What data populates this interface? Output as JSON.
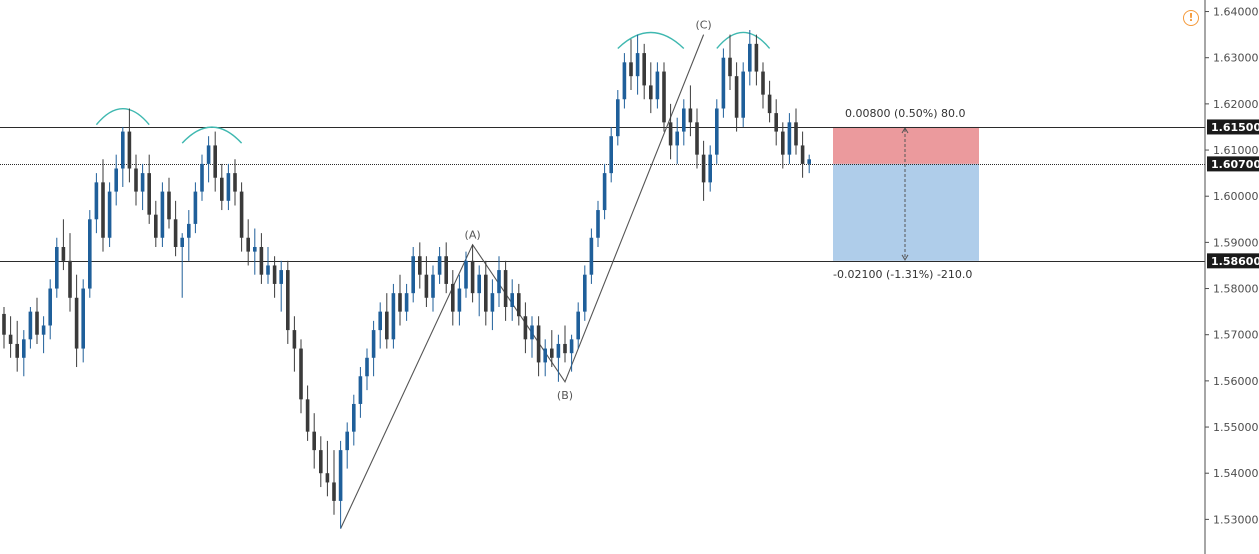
{
  "chart_data": {
    "type": "candlestick",
    "y_axis": {
      "range": [
        1.5225,
        1.6425
      ],
      "side": "right",
      "ticks": [
        "1.53000",
        "1.54000",
        "1.55000",
        "1.56000",
        "1.57000",
        "1.58000",
        "1.59000",
        "1.60000",
        "1.61000",
        "1.62000",
        "1.63000",
        "1.64000"
      ],
      "tick_values": [
        1.53,
        1.54,
        1.55,
        1.56,
        1.57,
        1.58,
        1.59,
        1.6,
        1.61,
        1.62,
        1.63,
        1.64
      ]
    },
    "colors": {
      "bull": "#1f5f9a",
      "bear": "#3a3a3a",
      "arc": "#3fb8b0",
      "profit_zone": "#e8888c",
      "stop_zone": "#a6c8e8",
      "price_label_bg": "#1a1a1a"
    },
    "price_levels": [
      {
        "value": 1.615,
        "label": "1.61500",
        "style": "solid"
      },
      {
        "value": 1.607,
        "label": "1.60700",
        "style": "dotted"
      },
      {
        "value": 1.586,
        "label": "1.58600",
        "style": "solid"
      }
    ],
    "wave_labels": [
      {
        "text": "(A)",
        "bar": 71,
        "price": 1.5895
      },
      {
        "text": "(B)",
        "bar": 85,
        "price": 1.5598
      },
      {
        "text": "(C)",
        "bar": 106,
        "price": 1.635
      }
    ],
    "wave_line": [
      [
        51,
        1.528
      ],
      [
        71,
        1.5895
      ],
      [
        85,
        1.5598
      ],
      [
        106,
        1.635
      ]
    ],
    "top_arcs": [
      {
        "from": 14,
        "to": 22,
        "price": 1.6155
      },
      {
        "from": 27,
        "to": 36,
        "price": 1.6115
      },
      {
        "from": 93,
        "to": 103,
        "price": 1.632
      },
      {
        "from": 108,
        "to": 116,
        "price": 1.632
      }
    ],
    "position": {
      "entry": 1.607,
      "target": 1.615,
      "stop": 1.586,
      "target_label": "0.00800 (0.50%) 80.0",
      "stop_label": "-0.02100 (-1.31%) -210.0"
    },
    "candles": [
      [
        1.5745,
        1.576,
        1.567,
        1.57
      ],
      [
        1.57,
        1.574,
        1.565,
        1.568
      ],
      [
        1.568,
        1.573,
        1.562,
        1.565
      ],
      [
        1.565,
        1.571,
        1.561,
        1.569
      ],
      [
        1.569,
        1.576,
        1.567,
        1.575
      ],
      [
        1.575,
        1.578,
        1.568,
        1.57
      ],
      [
        1.57,
        1.574,
        1.566,
        1.572
      ],
      [
        1.572,
        1.582,
        1.569,
        1.58
      ],
      [
        1.58,
        1.591,
        1.578,
        1.589
      ],
      [
        1.589,
        1.595,
        1.584,
        1.586
      ],
      [
        1.586,
        1.592,
        1.575,
        1.578
      ],
      [
        1.578,
        1.583,
        1.563,
        1.567
      ],
      [
        1.567,
        1.582,
        1.564,
        1.58
      ],
      [
        1.58,
        1.597,
        1.578,
        1.595
      ],
      [
        1.595,
        1.605,
        1.592,
        1.603
      ],
      [
        1.603,
        1.608,
        1.588,
        1.591
      ],
      [
        1.591,
        1.603,
        1.589,
        1.601
      ],
      [
        1.601,
        1.609,
        1.598,
        1.606
      ],
      [
        1.606,
        1.615,
        1.602,
        1.614
      ],
      [
        1.614,
        1.619,
        1.603,
        1.606
      ],
      [
        1.606,
        1.609,
        1.598,
        1.601
      ],
      [
        1.601,
        1.607,
        1.597,
        1.605
      ],
      [
        1.605,
        1.609,
        1.594,
        1.596
      ],
      [
        1.596,
        1.599,
        1.589,
        1.591
      ],
      [
        1.591,
        1.603,
        1.589,
        1.601
      ],
      [
        1.601,
        1.604,
        1.593,
        1.595
      ],
      [
        1.595,
        1.599,
        1.587,
        1.589
      ],
      [
        1.589,
        1.592,
        1.578,
        1.591
      ],
      [
        1.591,
        1.597,
        1.586,
        1.594
      ],
      [
        1.594,
        1.603,
        1.592,
        1.601
      ],
      [
        1.601,
        1.609,
        1.599,
        1.607
      ],
      [
        1.607,
        1.613,
        1.603,
        1.611
      ],
      [
        1.611,
        1.614,
        1.601,
        1.604
      ],
      [
        1.604,
        1.607,
        1.597,
        1.599
      ],
      [
        1.599,
        1.607,
        1.597,
        1.605
      ],
      [
        1.605,
        1.608,
        1.598,
        1.601
      ],
      [
        1.601,
        1.603,
        1.588,
        1.591
      ],
      [
        1.591,
        1.595,
        1.585,
        1.588
      ],
      [
        1.588,
        1.593,
        1.583,
        1.589
      ],
      [
        1.589,
        1.592,
        1.581,
        1.583
      ],
      [
        1.583,
        1.589,
        1.581,
        1.585
      ],
      [
        1.585,
        1.587,
        1.578,
        1.581
      ],
      [
        1.581,
        1.586,
        1.575,
        1.584
      ],
      [
        1.584,
        1.586,
        1.568,
        1.571
      ],
      [
        1.571,
        1.574,
        1.562,
        1.567
      ],
      [
        1.567,
        1.569,
        1.553,
        1.556
      ],
      [
        1.556,
        1.559,
        1.547,
        1.549
      ],
      [
        1.549,
        1.553,
        1.541,
        1.545
      ],
      [
        1.545,
        1.548,
        1.537,
        1.54
      ],
      [
        1.54,
        1.547,
        1.535,
        1.538
      ],
      [
        1.538,
        1.545,
        1.531,
        1.534
      ],
      [
        1.534,
        1.547,
        1.528,
        1.545
      ],
      [
        1.545,
        1.551,
        1.541,
        1.549
      ],
      [
        1.549,
        1.557,
        1.546,
        1.555
      ],
      [
        1.555,
        1.563,
        1.552,
        1.561
      ],
      [
        1.561,
        1.567,
        1.558,
        1.565
      ],
      [
        1.565,
        1.573,
        1.561,
        1.571
      ],
      [
        1.571,
        1.577,
        1.567,
        1.575
      ],
      [
        1.575,
        1.579,
        1.567,
        1.569
      ],
      [
        1.569,
        1.581,
        1.567,
        1.579
      ],
      [
        1.579,
        1.583,
        1.572,
        1.575
      ],
      [
        1.575,
        1.581,
        1.573,
        1.579
      ],
      [
        1.579,
        1.589,
        1.577,
        1.587
      ],
      [
        1.587,
        1.59,
        1.58,
        1.583
      ],
      [
        1.583,
        1.587,
        1.576,
        1.578
      ],
      [
        1.578,
        1.585,
        1.575,
        1.583
      ],
      [
        1.583,
        1.589,
        1.581,
        1.587
      ],
      [
        1.587,
        1.59,
        1.579,
        1.581
      ],
      [
        1.581,
        1.584,
        1.572,
        1.575
      ],
      [
        1.575,
        1.583,
        1.572,
        1.58
      ],
      [
        1.58,
        1.588,
        1.578,
        1.586
      ],
      [
        1.586,
        1.5895,
        1.577,
        1.579
      ],
      [
        1.579,
        1.585,
        1.574,
        1.583
      ],
      [
        1.583,
        1.586,
        1.572,
        1.575
      ],
      [
        1.575,
        1.582,
        1.571,
        1.579
      ],
      [
        1.579,
        1.587,
        1.576,
        1.584
      ],
      [
        1.584,
        1.586,
        1.573,
        1.576
      ],
      [
        1.576,
        1.582,
        1.573,
        1.579
      ],
      [
        1.579,
        1.581,
        1.572,
        1.574
      ],
      [
        1.574,
        1.577,
        1.566,
        1.569
      ],
      [
        1.569,
        1.574,
        1.565,
        1.572
      ],
      [
        1.572,
        1.574,
        1.561,
        1.564
      ],
      [
        1.564,
        1.569,
        1.561,
        1.567
      ],
      [
        1.567,
        1.571,
        1.563,
        1.565
      ],
      [
        1.565,
        1.57,
        1.5598,
        1.568
      ],
      [
        1.568,
        1.572,
        1.564,
        1.566
      ],
      [
        1.566,
        1.57,
        1.562,
        1.569
      ],
      [
        1.569,
        1.577,
        1.567,
        1.575
      ],
      [
        1.575,
        1.585,
        1.573,
        1.583
      ],
      [
        1.583,
        1.593,
        1.581,
        1.591
      ],
      [
        1.591,
        1.599,
        1.589,
        1.597
      ],
      [
        1.597,
        1.607,
        1.595,
        1.605
      ],
      [
        1.605,
        1.615,
        1.603,
        1.613
      ],
      [
        1.613,
        1.623,
        1.611,
        1.621
      ],
      [
        1.621,
        1.631,
        1.619,
        1.629
      ],
      [
        1.629,
        1.634,
        1.623,
        1.626
      ],
      [
        1.626,
        1.635,
        1.622,
        1.631
      ],
      [
        1.631,
        1.633,
        1.621,
        1.624
      ],
      [
        1.624,
        1.629,
        1.618,
        1.621
      ],
      [
        1.621,
        1.629,
        1.619,
        1.627
      ],
      [
        1.627,
        1.629,
        1.614,
        1.616
      ],
      [
        1.616,
        1.62,
        1.608,
        1.611
      ],
      [
        1.611,
        1.617,
        1.607,
        1.614
      ],
      [
        1.614,
        1.621,
        1.611,
        1.619
      ],
      [
        1.619,
        1.624,
        1.613,
        1.616
      ],
      [
        1.616,
        1.619,
        1.606,
        1.609
      ],
      [
        1.609,
        1.612,
        1.599,
        1.603
      ],
      [
        1.603,
        1.611,
        1.601,
        1.609
      ],
      [
        1.609,
        1.621,
        1.607,
        1.619
      ],
      [
        1.619,
        1.632,
        1.617,
        1.63
      ],
      [
        1.63,
        1.635,
        1.623,
        1.626
      ],
      [
        1.626,
        1.629,
        1.614,
        1.617
      ],
      [
        1.617,
        1.629,
        1.615,
        1.627
      ],
      [
        1.627,
        1.636,
        1.624,
        1.633
      ],
      [
        1.633,
        1.635,
        1.624,
        1.627
      ],
      [
        1.627,
        1.629,
        1.619,
        1.622
      ],
      [
        1.622,
        1.625,
        1.616,
        1.618
      ],
      [
        1.618,
        1.621,
        1.611,
        1.614
      ],
      [
        1.614,
        1.616,
        1.606,
        1.609
      ],
      [
        1.609,
        1.618,
        1.607,
        1.616
      ],
      [
        1.616,
        1.619,
        1.609,
        1.611
      ],
      [
        1.611,
        1.614,
        1.604,
        1.607
      ],
      [
        1.607,
        1.609,
        1.605,
        1.608
      ]
    ]
  },
  "toolbar": {
    "alert_icon": "exclamation-circle-icon",
    "alert_glyph": "!"
  }
}
